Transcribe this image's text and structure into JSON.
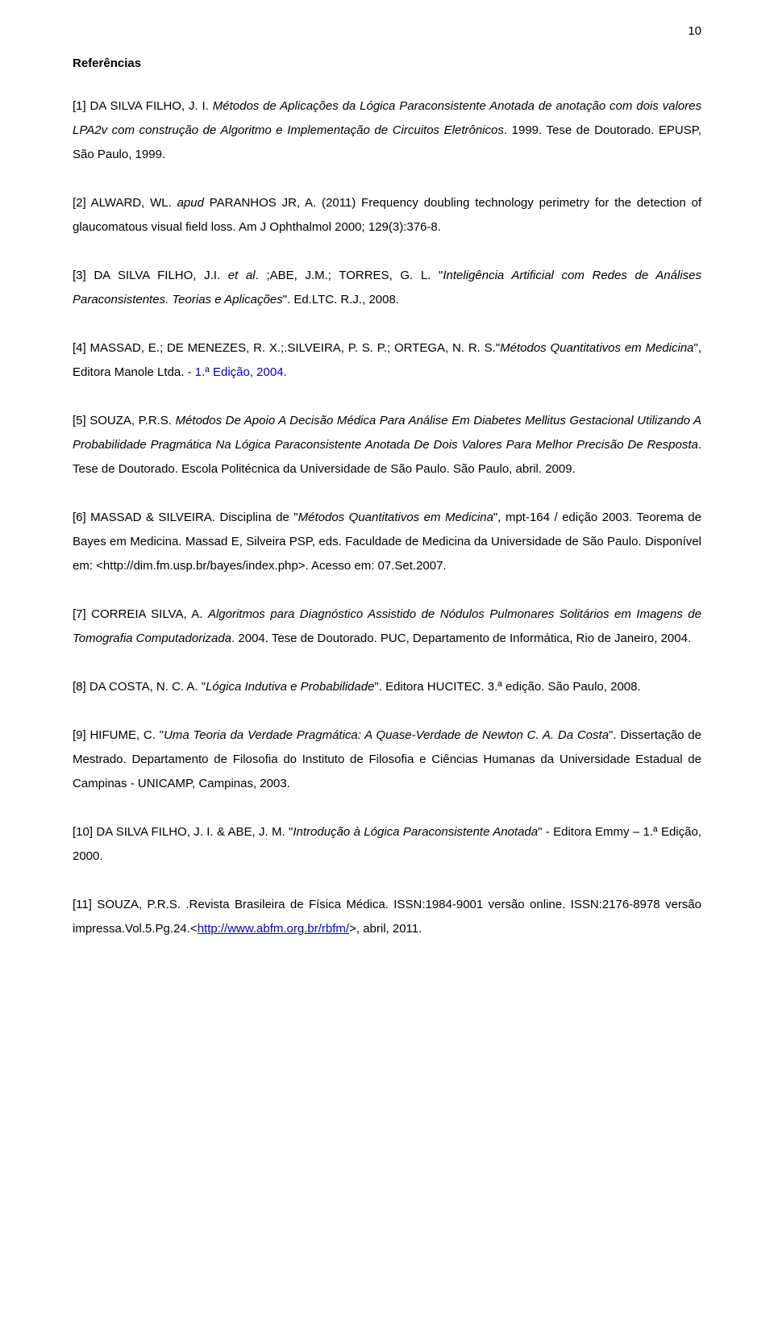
{
  "page_number": "10",
  "heading": "Referências",
  "refs": {
    "r1": {
      "a": "[1] DA SILVA FILHO, J. I. ",
      "b": "Métodos de Aplicações da Lógica Paraconsistente Anotada de anotação com dois valores LPA2v com construção de Algoritmo e Implementação de Circuitos Eletrônicos",
      "c": ". 1999. Tese de Doutorado. EPUSP, São Paulo, 1999."
    },
    "r2": {
      "a": "[2] ALWARD, WL. ",
      "b": "apud",
      "c": " PARANHOS JR, A. (2011)  Frequency doubling technology perimetry for the detection of glaucomatous visual field loss. Am J Ophthalmol 2000; 129(3):376-8."
    },
    "r3": {
      "a": "[3] DA SILVA FILHO, J.I. ",
      "b": "et al",
      "c": ". ;ABE, J.M.; TORRES, G. L. \"",
      "d": "Inteligência Artificial com Redes de Análises Paraconsistentes. Teorias e Aplicações",
      "e": "\". Ed.LTC. R.J., 2008."
    },
    "r4": {
      "a": "[4] MASSAD, E.; DE MENEZES, R. X.;.SILVEIRA, P. S. P.; ORTEGA, N. R. S.\"",
      "b": "Métodos Quantitativos em Medicina",
      "c": "\", Editora Manole Ltda. ",
      "d": "- 1.ª Edição, 2004."
    },
    "r5": {
      "a": "[5] SOUZA, P.R.S. ",
      "b": "Métodos De Apoio A Decisão Médica Para Análise Em Diabetes Mellitus Gestacional Utilizando A Probabilidade Pragmática Na Lógica Paraconsistente Anotada De Dois Valores Para Melhor Precisão De Resposta",
      "c": ". Tese de Doutorado. Escola Politécnica da Universidade de São Paulo. São Paulo, abril. 2009."
    },
    "r6": {
      "a": "[6] MASSAD & SILVEIRA. Disciplina de \"",
      "b": "Métodos Quantitativos em Medicina",
      "c": "\", mpt-164 / edição 2003. Teorema de Bayes em Medicina. Massad E, Silveira PSP, eds. Faculdade de Medicina da Universidade de São Paulo. Disponível em: <http://dim.fm.usp.br/bayes/index.php>. Acesso em: 07.Set.2007."
    },
    "r7": {
      "a": "[7] CORREIA SILVA, A. ",
      "b": "Algoritmos para Diagnóstico Assistido de Nódulos Pulmonares Solitários em Imagens de Tomografia Computadorizada",
      "c": ". 2004. Tese de Doutorado. PUC, Departamento de Informática, Rio de Janeiro, 2004."
    },
    "r8": {
      "a": "[8] DA COSTA, N. C. A. \"",
      "b": "Lógica Indutiva e Probabilidade",
      "c": "\". Editora HUCITEC. 3.ª edição. São Paulo, 2008."
    },
    "r9": {
      "a": "[9] HIFUME, C. \"",
      "b": "Uma Teoria da Verdade Pragmática: A Quase-Verdade de Newton C. A. Da Costa",
      "c": "\". Dissertação de Mestrado. Departamento de Filosofia do Instituto de Filosofia e Ciências Humanas da Universidade Estadual de Campinas - UNICAMP, Campinas, 2003."
    },
    "r10": {
      "a": "[10] DA SILVA FILHO, J. I. & ABE, J. M. \"",
      "b": "Introdução à Lógica Paraconsistente Anotada",
      "c": "\" - Editora Emmy – 1.ª Edição, 2000."
    },
    "r11": {
      "a": "[11] SOUZA, P.R.S. .Revista Brasileira de Física Médica. ISSN:1984-9001 versão online. ISSN:2176-8978 versão impressa.Vol.5.Pg.24.<",
      "b": "http://www.abfm.org.br/rbfm/",
      "c": ">, abril, 2011."
    }
  }
}
